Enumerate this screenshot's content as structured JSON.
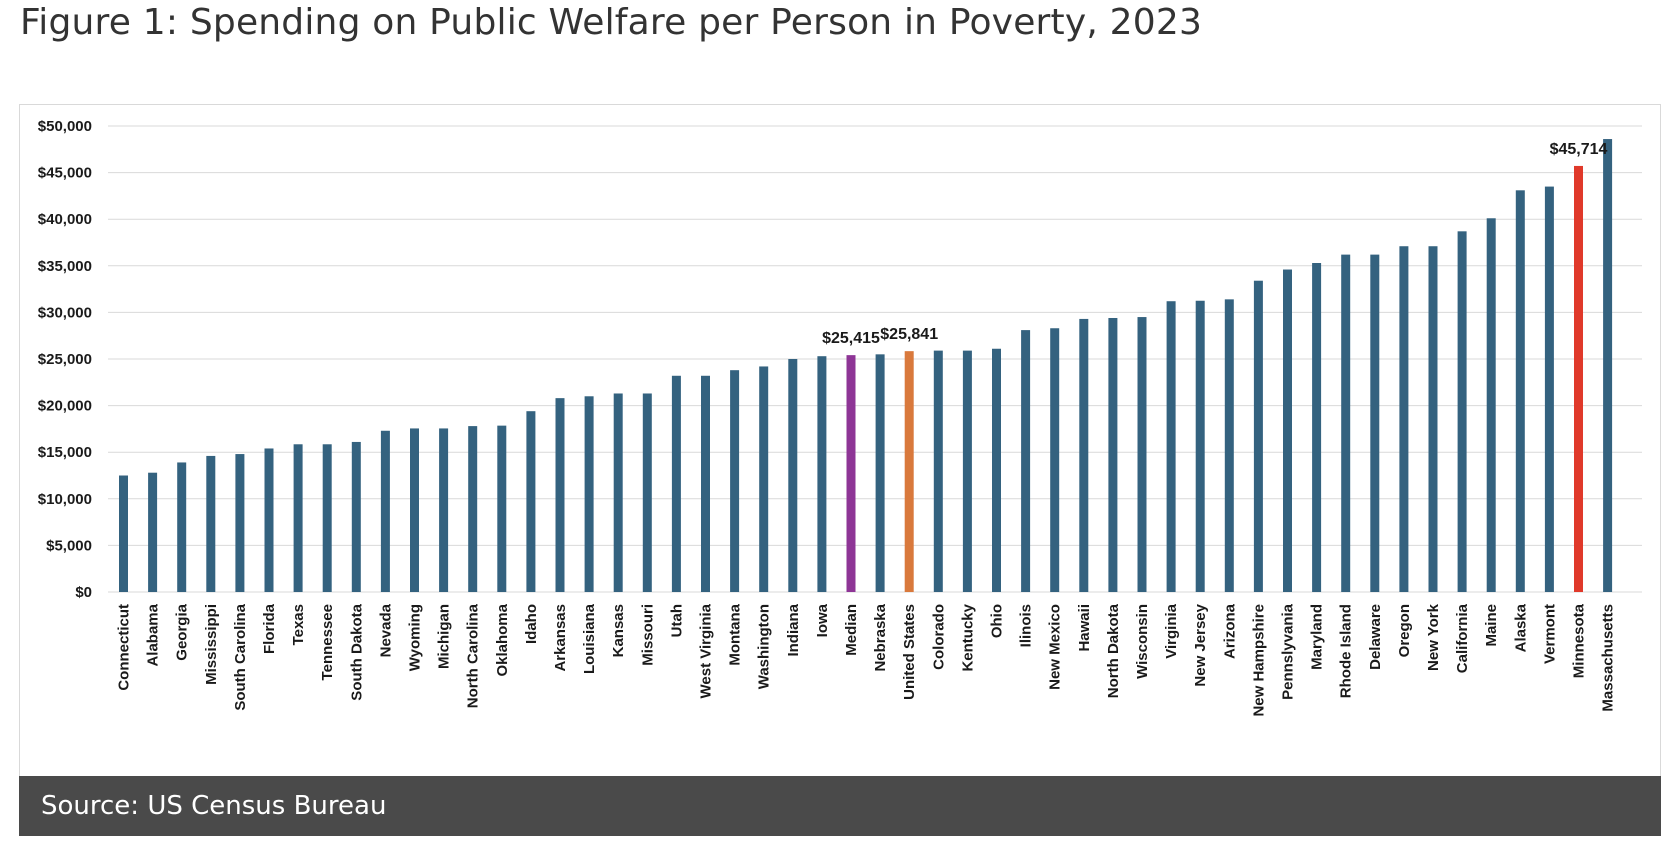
{
  "page": {
    "title": "Figure 1: Spending on Public Welfare per Person in Poverty, 2023",
    "source": "Source: US Census Bureau"
  },
  "colors": {
    "default": "#34627f",
    "median": "#8e3596",
    "us": "#d9793c",
    "minnesota": "#e0392a",
    "grid": "#d9d9d9"
  },
  "chart_data": {
    "type": "bar",
    "title": "Figure 1: Spending on Public Welfare per Person in Poverty, 2023",
    "xlabel": "",
    "ylabel": "",
    "ylim": [
      0,
      50000
    ],
    "yticks": [
      0,
      5000,
      10000,
      15000,
      20000,
      25000,
      30000,
      35000,
      40000,
      45000,
      50000
    ],
    "ytick_labels": [
      "$0",
      "$5,000",
      "$10,000",
      "$15,000",
      "$20,000",
      "$25,000",
      "$30,000",
      "$35,000",
      "$40,000",
      "$45,000",
      "$50,000"
    ],
    "grid": true,
    "legend": "none",
    "categories": [
      "Connecticut",
      "Alabama",
      "Georgia",
      "Mississippi",
      "South Carolina",
      "Florida",
      "Texas",
      "Tennessee",
      "South Dakota",
      "Nevada",
      "Wyoming",
      "Michigan",
      "North Carolina",
      "Oklahoma",
      "Idaho",
      "Arkansas",
      "Louisiana",
      "Kansas",
      "Missouri",
      "Utah",
      "West Virginia",
      "Montana",
      "Washington",
      "Indiana",
      "Iowa",
      "Median",
      "Nebraska",
      "United States",
      "Colorado",
      "Kentucky",
      "Ohio",
      "Ilinois",
      "New Mexico",
      "Hawaii",
      "North Dakota",
      "Wisconsin",
      "Virginia",
      "New Jersey",
      "Arizona",
      "New Hampshire",
      "Pennslyvania",
      "Maryland",
      "Rhode Island",
      "Delaware",
      "Oregon",
      "New York",
      "California",
      "Maine",
      "Alaska",
      "Vermont",
      "Minnesota",
      "Massachusetts"
    ],
    "values": [
      12500,
      12800,
      13900,
      14600,
      14800,
      15400,
      15850,
      15850,
      16100,
      17300,
      17550,
      17550,
      17800,
      17850,
      19400,
      20800,
      21000,
      21300,
      21300,
      23200,
      23200,
      23800,
      24200,
      25000,
      25300,
      25415,
      25500,
      25841,
      25900,
      25900,
      26100,
      28100,
      28300,
      29300,
      29400,
      29500,
      31200,
      31250,
      31400,
      33400,
      34600,
      35300,
      36200,
      36200,
      37100,
      37100,
      38700,
      40100,
      43100,
      43500,
      45714,
      48600
    ],
    "highlight": {
      "Median": "median",
      "United States": "us",
      "Minnesota": "minnesota"
    },
    "data_labels": [
      {
        "category": "Median",
        "text": "$25,415"
      },
      {
        "category": "United States",
        "text": "$25,841"
      },
      {
        "category": "Minnesota",
        "text": "$45,714"
      }
    ]
  }
}
